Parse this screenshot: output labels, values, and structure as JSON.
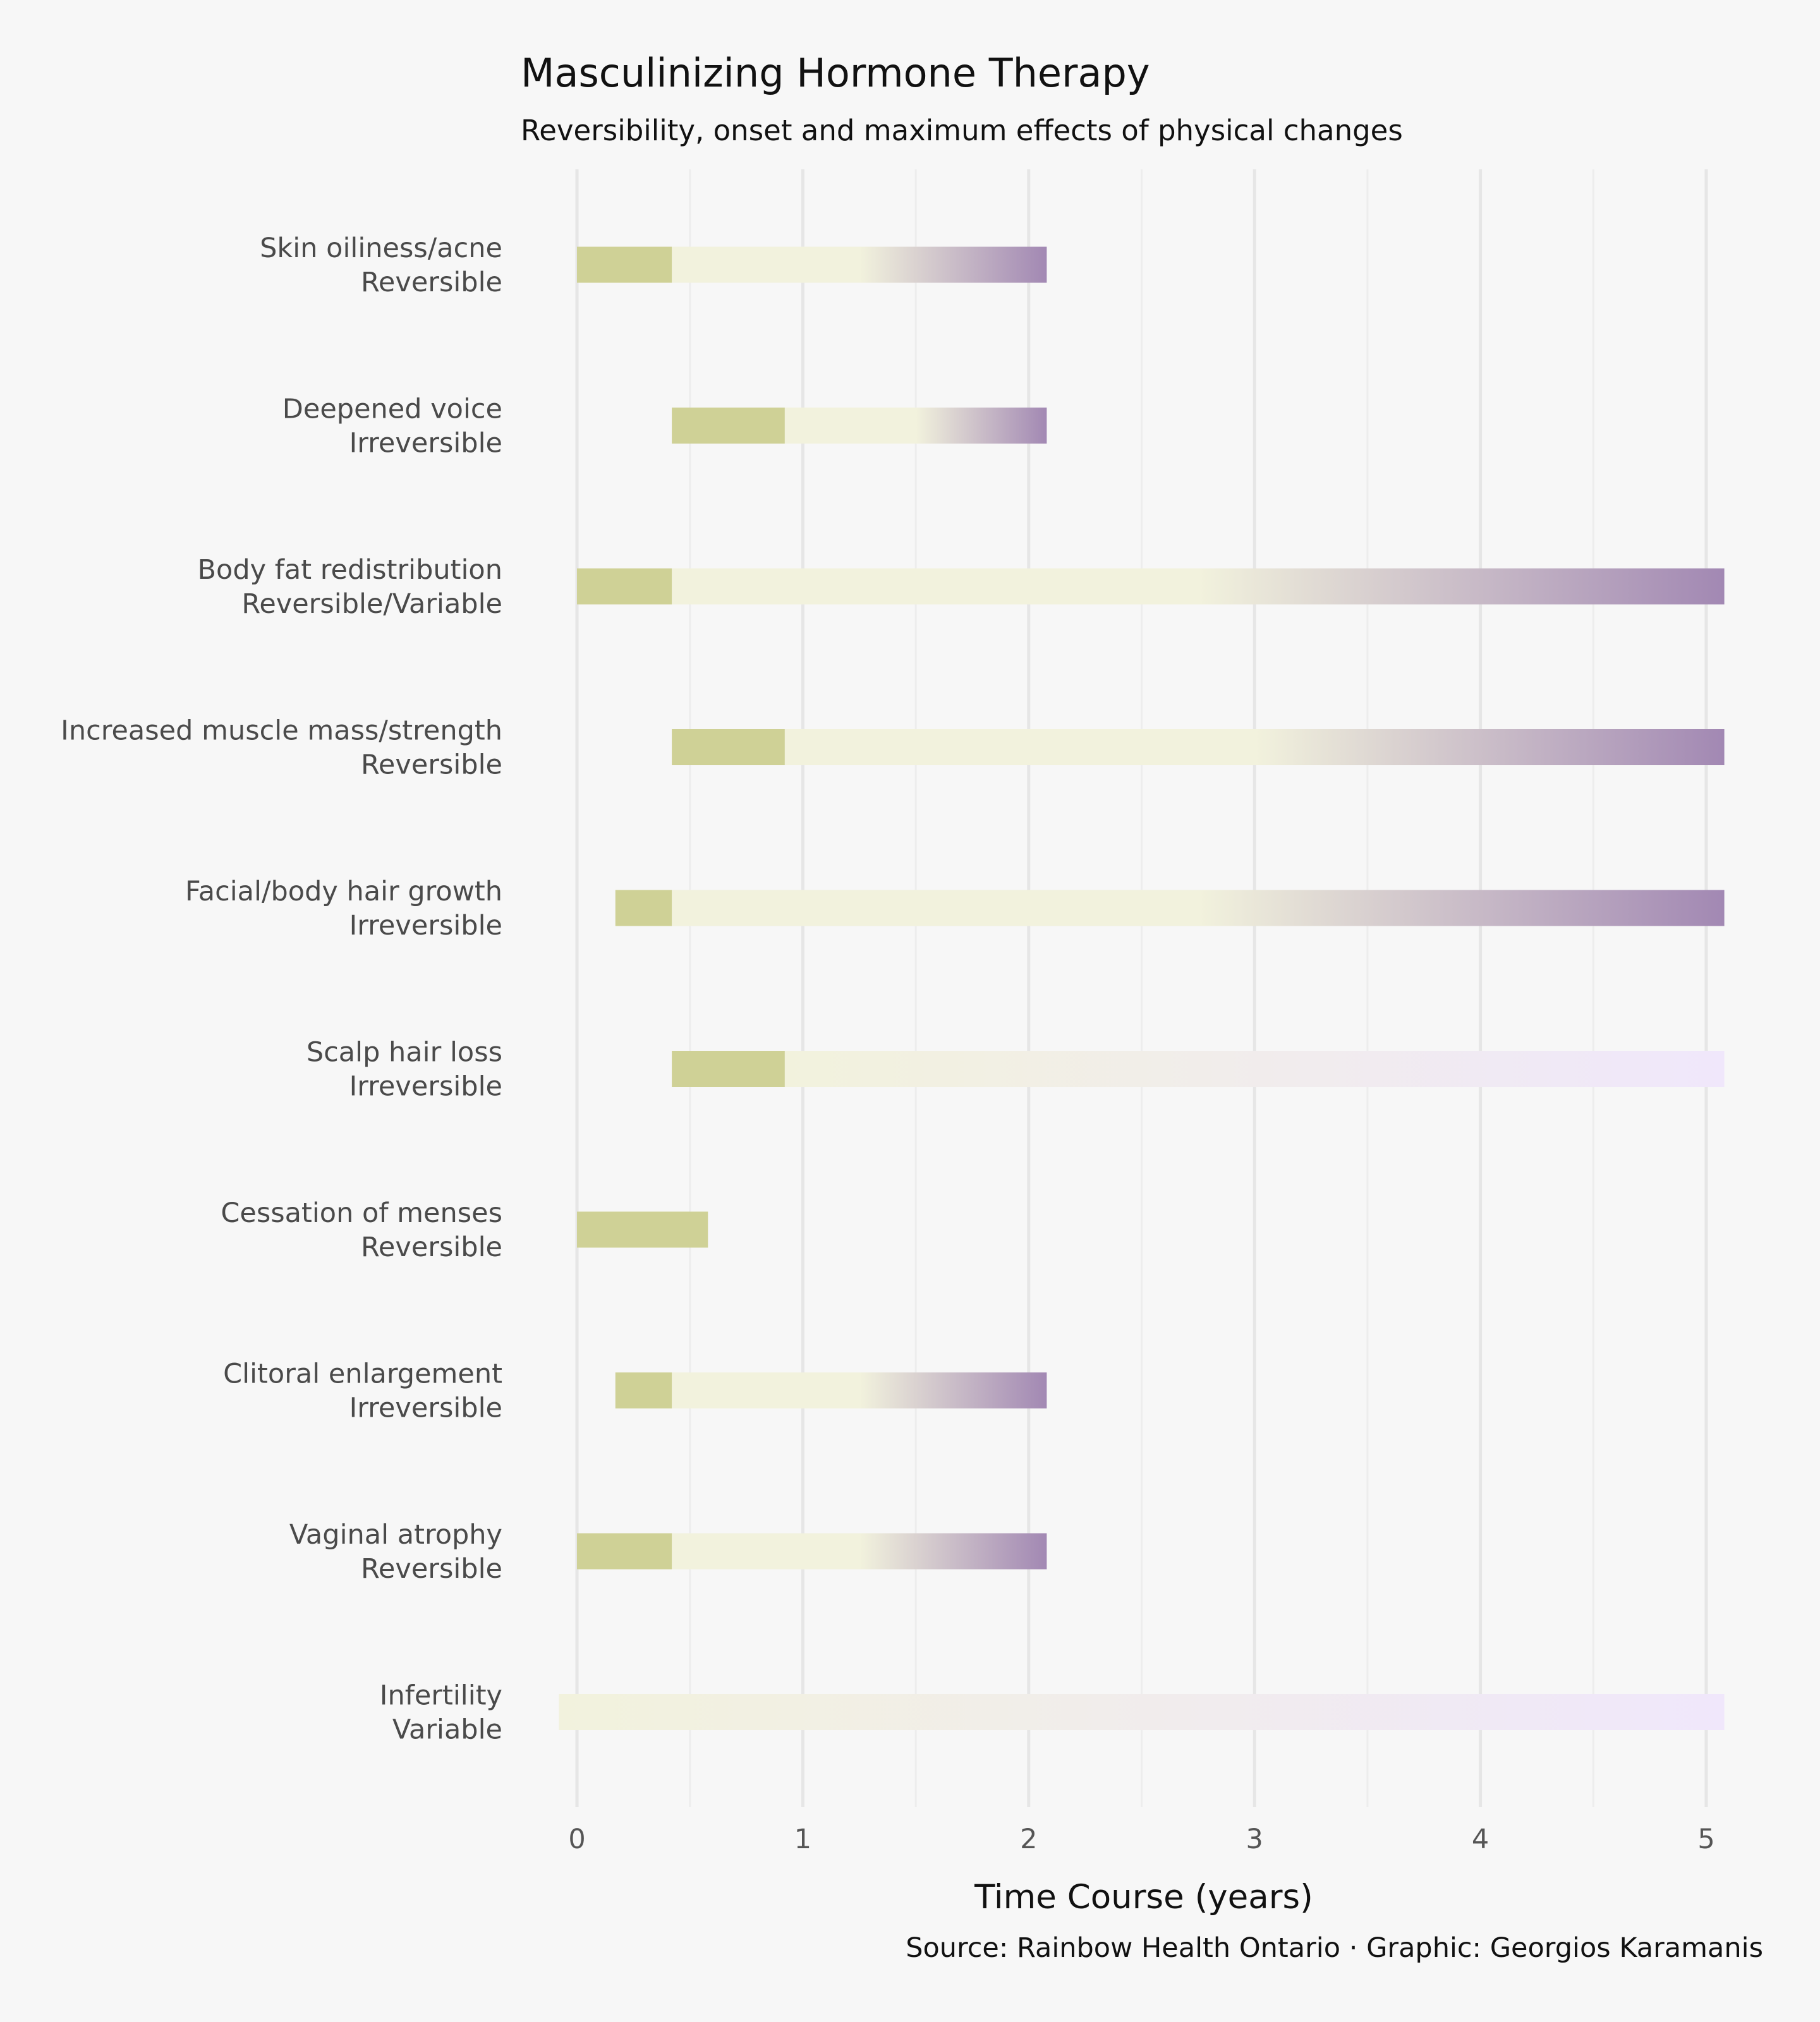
{
  "chart_data": {
    "type": "bar",
    "subtype": "range-timeline",
    "title": "Masculinizing Hormone Therapy",
    "subtitle": "Reversibility, onset and maximum effects of physical changes",
    "xlabel": "Time Course (years)",
    "ylabel": "",
    "caption": "Source: Rainbow Health Ontario · Graphic: Georgios Karamanis",
    "xlim": [
      0,
      5
    ],
    "xticks": [
      "0",
      "1",
      "2",
      "3",
      "4",
      "5"
    ],
    "grid": true,
    "legend": "none",
    "colors": {
      "onset": "#cfd196",
      "progress_start": "#f2f2dd",
      "maximum": "#a288b3",
      "faint_end": "#f0e7fb"
    },
    "items": [
      {
        "effect": "Skin oiliness/acne",
        "reversibility": "Reversible",
        "onset": [
          0,
          0.42
        ],
        "effect_to": 2.08,
        "maximum_from": 1.25,
        "max_reached": true
      },
      {
        "effect": "Deepened voice",
        "reversibility": "Irreversible",
        "onset": [
          0.42,
          0.92
        ],
        "effect_to": 2.08,
        "maximum_from": 1.5,
        "max_reached": true
      },
      {
        "effect": "Body fat redistribution",
        "reversibility": "Reversible/Variable",
        "onset": [
          0,
          0.42
        ],
        "effect_to": 5.08,
        "maximum_from": 2.75,
        "max_reached": true
      },
      {
        "effect": "Increased muscle mass/strength",
        "reversibility": "Reversible",
        "onset": [
          0.42,
          0.92
        ],
        "effect_to": 5.08,
        "maximum_from": 3.0,
        "max_reached": true
      },
      {
        "effect": "Facial/body hair growth",
        "reversibility": "Irreversible",
        "onset": [
          0.17,
          0.42
        ],
        "effect_to": 5.08,
        "maximum_from": 2.75,
        "max_reached": true
      },
      {
        "effect": "Scalp hair loss",
        "reversibility": "Irreversible",
        "onset": [
          0.42,
          0.92
        ],
        "effect_to": 5.08,
        "maximum_from": null,
        "max_reached": false
      },
      {
        "effect": "Cessation of menses",
        "reversibility": "Reversible",
        "onset": [
          0,
          0.58
        ],
        "effect_to": null,
        "maximum_from": null,
        "max_reached": false
      },
      {
        "effect": "Clitoral enlargement",
        "reversibility": "Irreversible",
        "onset": [
          0.17,
          0.42
        ],
        "effect_to": 2.08,
        "maximum_from": 1.25,
        "max_reached": true
      },
      {
        "effect": "Vaginal atrophy",
        "reversibility": "Reversible",
        "onset": [
          0,
          0.42
        ],
        "effect_to": 2.08,
        "maximum_from": 1.25,
        "max_reached": true
      },
      {
        "effect": "Infertility",
        "reversibility": "Variable",
        "onset": null,
        "effect_from": -0.08,
        "effect_to": 5.08,
        "maximum_from": null,
        "max_reached": false
      }
    ]
  }
}
